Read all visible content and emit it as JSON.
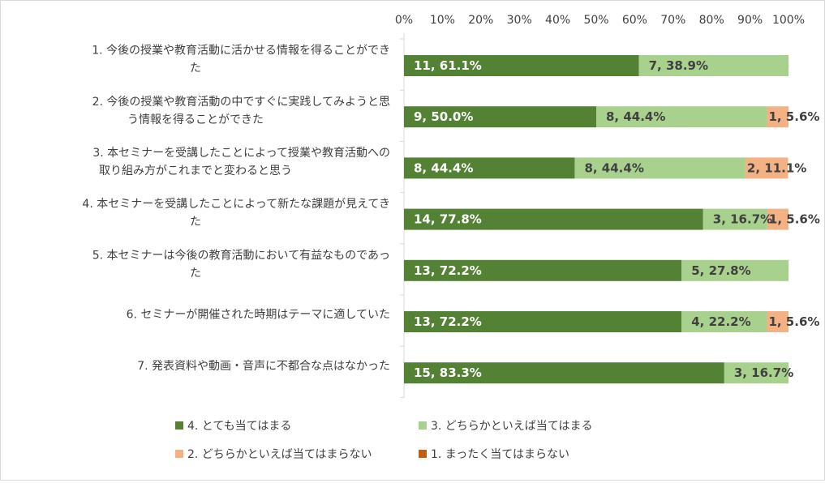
{
  "chart_data": {
    "type": "bar",
    "orientation": "horizontal",
    "stacked": true,
    "categories": [
      [
        "1. 今後の授業や教育活動に活かせる情報を得ることができ",
        "た"
      ],
      [
        "2. 今後の授業や教育活動の中ですぐに実践してみようと思",
        "う情報を得ることができた"
      ],
      [
        "3. 本セミナーを受講したことによって授業や教育活動への",
        "取り組み方がこれまでと変わると思う"
      ],
      [
        "4. 本セミナーを受講したことによって新たな課題が見えてき",
        "た"
      ],
      [
        "5. 本セミナーは今後の教育活動において有益なものであっ",
        "た"
      ],
      [
        "6. セミナーが開催された時期はテーマに適していた"
      ],
      [
        "7. 発表資料や動画・音声に不都合な点はなかった"
      ]
    ],
    "series": [
      {
        "name": "4. とても当てはまる",
        "color": "#548235",
        "values": [
          61.1,
          50.0,
          44.4,
          77.8,
          72.2,
          72.2,
          83.3
        ],
        "labels": [
          "11, 61.1%",
          "9, 50.0%",
          "8, 44.4%",
          "14, 77.8%",
          "13, 72.2%",
          "13, 72.2%",
          "15, 83.3%"
        ]
      },
      {
        "name": "3. どちらかといえば当てはまる",
        "color": "#a9d18e",
        "values": [
          38.9,
          44.4,
          44.4,
          16.7,
          27.8,
          22.2,
          16.7
        ],
        "labels": [
          "7, 38.9%",
          "8, 44.4%",
          "8, 44.4%",
          "3, 16.7%",
          "5, 27.8%",
          "4, 22.2%",
          "3, 16.7%"
        ]
      },
      {
        "name": "2. どちらかといえば当てはまらない",
        "color": "#f4b183",
        "values": [
          0,
          5.6,
          11.1,
          5.6,
          0,
          5.6,
          0
        ],
        "labels": [
          "",
          "1, 5.6%",
          "2, 11.1%",
          "1, 5.6%",
          "",
          "1, 5.6%",
          ""
        ]
      },
      {
        "name": "1. まったく当てはまらない",
        "color": "#c55a11",
        "values": [
          0,
          0,
          0,
          0,
          0,
          0,
          0
        ],
        "labels": [
          "",
          "",
          "",
          "",
          "",
          "",
          ""
        ]
      }
    ],
    "xlim": [
      0,
      100
    ],
    "xticks": [
      "0%",
      "10%",
      "20%",
      "30%",
      "40%",
      "50%",
      "60%",
      "70%",
      "80%",
      "90%",
      "100%"
    ],
    "x_axis_position": "top",
    "grid": false,
    "legend_position": "bottom"
  }
}
